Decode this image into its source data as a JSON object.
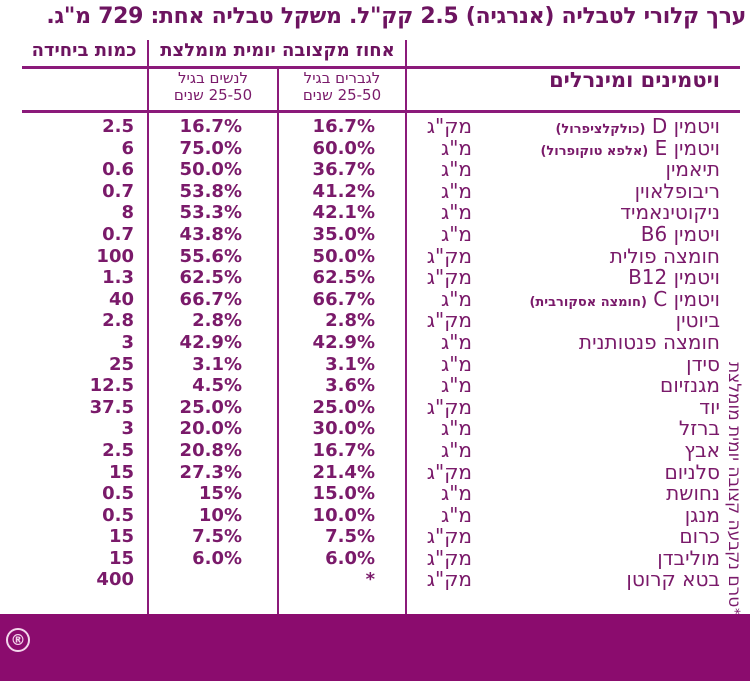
{
  "title": "ערך קלורי לטבליה (אנרגיה) 2.5 קק\"ל. משקל טבליה אחת: 729 מ\"ג.",
  "header": {
    "amount_per_unit": "כמות ביחידה",
    "rda_percent": "אחוז מקצובה יומית מומלצת",
    "vitamins_minerals": "ויטמינים ומינרלים",
    "women_line1": "לנשים בגיל",
    "women_line2": "25-50 שנים",
    "men_line1": "לגברים בגיל",
    "men_line2": "25-50 שנים"
  },
  "rows": [
    {
      "name": "ויטמין D",
      "sub": "(כולקלציפרול)",
      "unit": "מק\"ג",
      "men": "16.7%",
      "women": "16.7%",
      "amount": "2.5"
    },
    {
      "name": "ויטמין E",
      "sub": "(אלפא טוקופרול)",
      "unit": "מ\"ג",
      "men": "60.0%",
      "women": "75.0%",
      "amount": "6"
    },
    {
      "name": "תיאמין",
      "sub": "",
      "unit": "מ\"ג",
      "men": "36.7%",
      "women": "50.0%",
      "amount": "0.6"
    },
    {
      "name": "ריבופלאוין",
      "sub": "",
      "unit": "מ\"ג",
      "men": "41.2%",
      "women": "53.8%",
      "amount": "0.7"
    },
    {
      "name": "ניקוטינאמיד",
      "sub": "",
      "unit": "מ\"ג",
      "men": "42.1%",
      "women": "53.3%",
      "amount": "8"
    },
    {
      "name": "ויטמין B6",
      "sub": "",
      "unit": "מ\"ג",
      "men": "35.0%",
      "women": "43.8%",
      "amount": "0.7"
    },
    {
      "name": "חומצה פולית",
      "sub": "",
      "unit": "מק\"ג",
      "men": "50.0%",
      "women": "55.6%",
      "amount": "100"
    },
    {
      "name": "ויטמין B12",
      "sub": "",
      "unit": "מק\"ג",
      "men": "62.5%",
      "women": "62.5%",
      "amount": "1.3"
    },
    {
      "name": "ויטמין C",
      "sub": "(חומצה אסקורבית)",
      "unit": "מ\"ג",
      "men": "66.7%",
      "women": "66.7%",
      "amount": "40"
    },
    {
      "name": "ביוטין",
      "sub": "",
      "unit": "מק\"ג",
      "men": "2.8%",
      "women": "2.8%",
      "amount": "2.8"
    },
    {
      "name": "חומצה פנטותנית",
      "sub": "",
      "unit": "מ\"ג",
      "men": "42.9%",
      "women": "42.9%",
      "amount": "3"
    },
    {
      "name": "סידן",
      "sub": "",
      "unit": "מ\"ג",
      "men": "3.1%",
      "women": "3.1%",
      "amount": "25"
    },
    {
      "name": "מגנזיום",
      "sub": "",
      "unit": "מ\"ג",
      "men": "3.6%",
      "women": "4.5%",
      "amount": "12.5"
    },
    {
      "name": "יוד",
      "sub": "",
      "unit": "מק\"ג",
      "men": "25.0%",
      "women": "25.0%",
      "amount": "37.5"
    },
    {
      "name": "ברזל",
      "sub": "",
      "unit": "מ\"ג",
      "men": "30.0%",
      "women": "20.0%",
      "amount": "3"
    },
    {
      "name": "אבץ",
      "sub": "",
      "unit": "מ\"ג",
      "men": "16.7%",
      "women": "20.8%",
      "amount": "2.5"
    },
    {
      "name": "סלניום",
      "sub": "",
      "unit": "מק\"ג",
      "men": "21.4%",
      "women": "27.3%",
      "amount": "15"
    },
    {
      "name": "נחושת",
      "sub": "",
      "unit": "מ\"ג",
      "men": "15.0%",
      "women": "15%",
      "amount": "0.5"
    },
    {
      "name": "מנגן",
      "sub": "",
      "unit": "מ\"ג",
      "men": "10.0%",
      "women": "10%",
      "amount": "0.5"
    },
    {
      "name": "כרום",
      "sub": "",
      "unit": "מק\"ג",
      "men": "7.5%",
      "women": "7.5%",
      "amount": "15"
    },
    {
      "name": "מוליבדן",
      "sub": "",
      "unit": "מק\"ג",
      "men": "6.0%",
      "women": "6.0%",
      "amount": "15"
    },
    {
      "name": "בטא קרוטן",
      "sub": "",
      "unit": "מק\"ג",
      "men": "*",
      "women": "",
      "amount": "400"
    }
  ],
  "footnote": {
    "star": "*",
    "text": "טרם נקבעה קצובה יומית מומלצת"
  },
  "footer": {
    "registered_mark": "®",
    "band_color": "#8b0c6e"
  }
}
